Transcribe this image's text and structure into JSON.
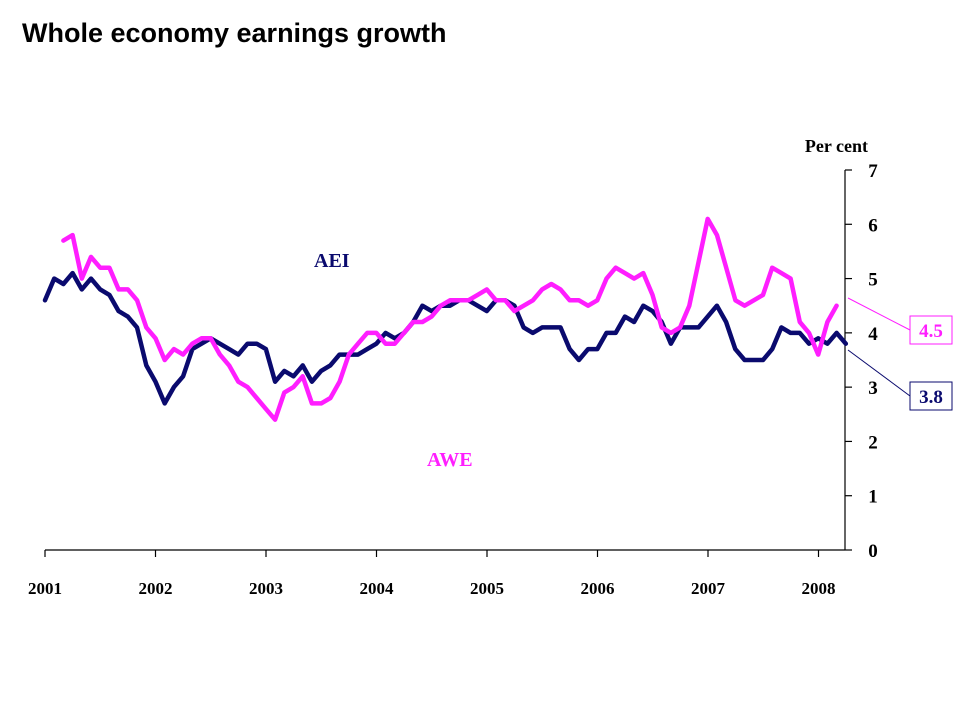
{
  "chart_data": {
    "type": "line",
    "title": "Whole economy earnings growth",
    "ylabel": "Per cent",
    "xlabel": "",
    "ylim": [
      0,
      7
    ],
    "yticks": [
      0,
      1,
      2,
      3,
      4,
      5,
      6,
      7
    ],
    "y_axis_side": "right",
    "xlim": [
      2001,
      2008.25
    ],
    "xticks": [
      "2001",
      "2002",
      "2003",
      "2004",
      "2005",
      "2006",
      "2007",
      "2008"
    ],
    "grid": false,
    "series": [
      {
        "name": "AEI",
        "color": "#0a0a6e",
        "x_start": 2001.0,
        "x_step": 0.0833,
        "values": [
          4.6,
          5.0,
          4.9,
          5.1,
          4.8,
          5.0,
          4.8,
          4.7,
          4.4,
          4.3,
          4.1,
          3.4,
          3.1,
          2.7,
          3.0,
          3.2,
          3.7,
          3.8,
          3.9,
          3.8,
          3.7,
          3.6,
          3.8,
          3.8,
          3.7,
          3.1,
          3.3,
          3.2,
          3.4,
          3.1,
          3.3,
          3.4,
          3.6,
          3.6,
          3.6,
          3.7,
          3.8,
          4.0,
          3.9,
          4.0,
          4.2,
          4.5,
          4.4,
          4.5,
          4.5,
          4.6,
          4.6,
          4.5,
          4.4,
          4.6,
          4.6,
          4.5,
          4.1,
          4.0,
          4.1,
          4.1,
          4.1,
          3.7,
          3.5,
          3.7,
          3.7,
          4.0,
          4.0,
          4.3,
          4.2,
          4.5,
          4.4,
          4.2,
          3.8,
          4.1,
          4.1,
          4.1,
          4.3,
          4.5,
          4.2,
          3.7,
          3.5,
          3.5,
          3.5,
          3.7,
          4.1,
          4.0,
          4.0,
          3.8,
          3.9,
          3.8,
          4.0,
          3.8
        ]
      },
      {
        "name": "AWE",
        "color": "#ff1eff",
        "x_start": 2001.1667,
        "x_step": 0.0833,
        "values": [
          5.7,
          5.8,
          5.0,
          5.4,
          5.2,
          5.2,
          4.8,
          4.8,
          4.6,
          4.1,
          3.9,
          3.5,
          3.7,
          3.6,
          3.8,
          3.9,
          3.9,
          3.6,
          3.4,
          3.1,
          3.0,
          2.8,
          2.6,
          2.4,
          2.9,
          3.0,
          3.2,
          2.7,
          2.7,
          2.8,
          3.1,
          3.6,
          3.8,
          4.0,
          4.0,
          3.8,
          3.8,
          4.0,
          4.2,
          4.2,
          4.3,
          4.5,
          4.6,
          4.6,
          4.6,
          4.7,
          4.8,
          4.6,
          4.6,
          4.4,
          4.5,
          4.6,
          4.8,
          4.9,
          4.8,
          4.6,
          4.6,
          4.5,
          4.6,
          5.0,
          5.2,
          5.1,
          5.0,
          5.1,
          4.7,
          4.1,
          4.0,
          4.1,
          4.5,
          5.3,
          6.1,
          5.8,
          5.2,
          4.6,
          4.5,
          4.6,
          4.7,
          5.2,
          5.1,
          5.0,
          4.2,
          4.0,
          3.6,
          4.2,
          4.5
        ]
      }
    ],
    "series_labels": [
      {
        "text": "AEI",
        "color": "#0a0a6e"
      },
      {
        "text": "AWE",
        "color": "#ff1eff"
      }
    ],
    "latest_values": [
      {
        "series": "AWE",
        "text": "4.5",
        "value": 4.5,
        "color": "#ff1eff"
      },
      {
        "series": "AEI",
        "text": "3.8",
        "value": 3.8,
        "color": "#0a0a6e"
      }
    ]
  }
}
